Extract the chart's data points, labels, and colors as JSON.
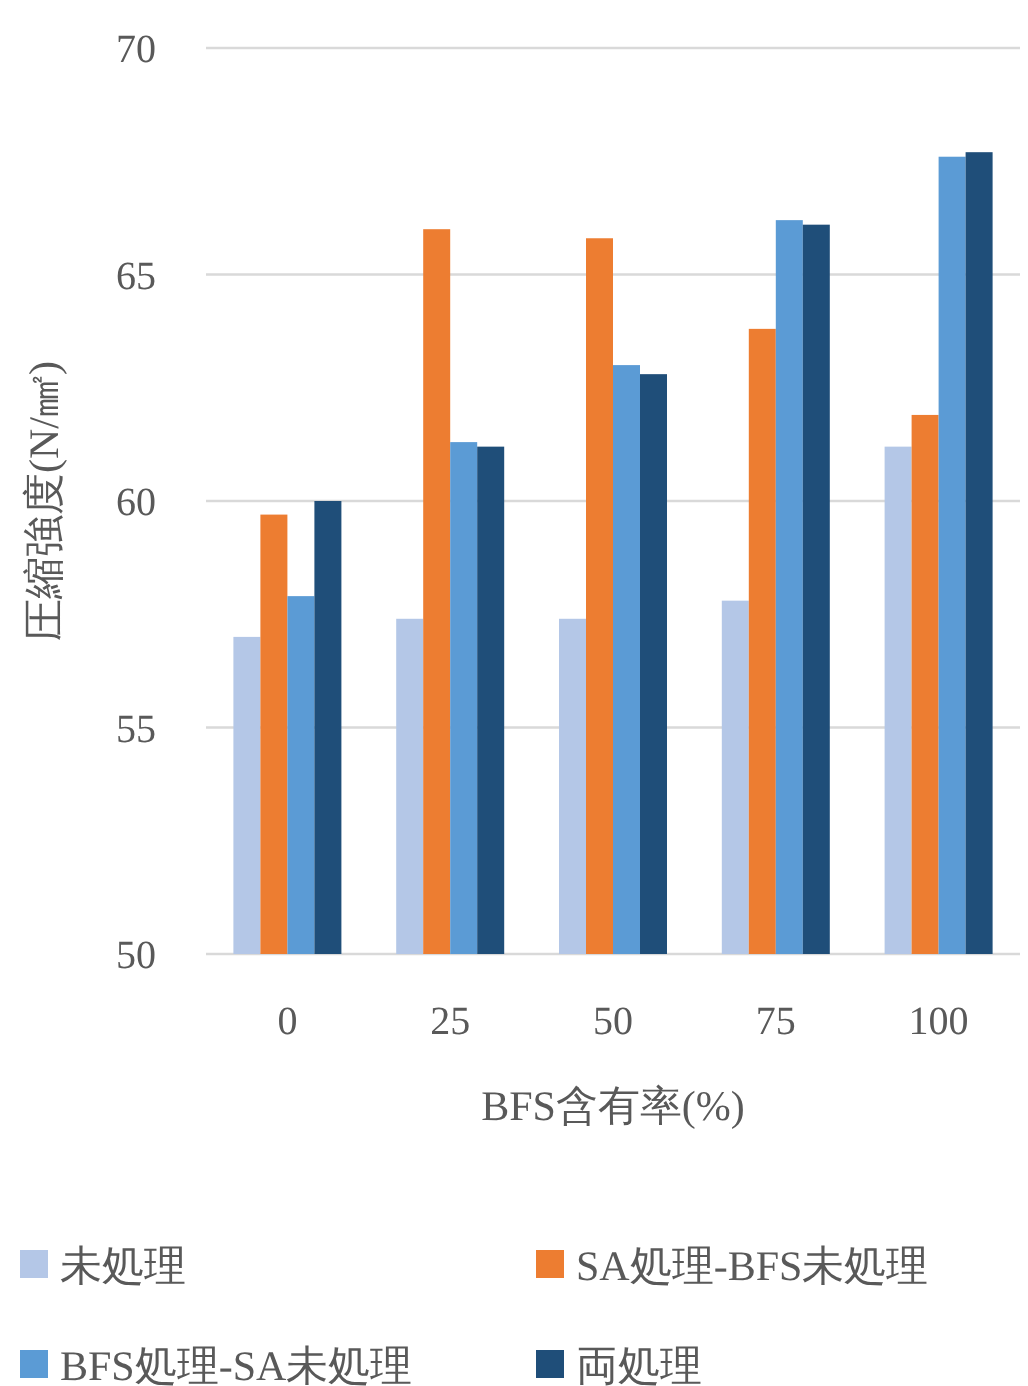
{
  "chart_data": {
    "type": "bar",
    "xlabel": "BFS含有率(%)",
    "ylabel": "圧縮強度(N/㎟)",
    "categories": [
      "0",
      "25",
      "50",
      "75",
      "100"
    ],
    "series": [
      {
        "name": "未処理",
        "color": "#b4c7e7",
        "values": [
          57.0,
          57.4,
          57.4,
          57.8,
          61.2
        ]
      },
      {
        "name": "SA処理-BFS未処理",
        "color": "#ed7d31",
        "values": [
          59.7,
          66.0,
          65.8,
          63.8,
          61.9
        ]
      },
      {
        "name": "BFS処理-SA未処理",
        "color": "#5b9bd5",
        "values": [
          57.9,
          61.3,
          63.0,
          66.2,
          67.6
        ]
      },
      {
        "name": "両処理",
        "color": "#1f4e79",
        "values": [
          60.0,
          61.2,
          62.8,
          66.1,
          67.7
        ]
      }
    ],
    "ylim": [
      50,
      70
    ],
    "yticks": [
      50,
      55,
      60,
      65,
      70
    ],
    "grid": "y",
    "legend": "bottom"
  }
}
